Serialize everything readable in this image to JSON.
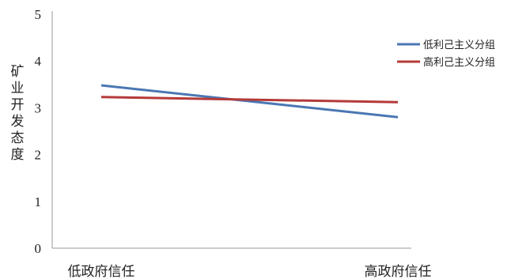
{
  "chart_data": {
    "type": "line",
    "categories": [
      "低政府信任",
      "高政府信任"
    ],
    "ylabel": "矿业开发态度",
    "xlabel": "",
    "ylim": [
      0,
      5
    ],
    "yticks": [
      0,
      1,
      2,
      3,
      4,
      5
    ],
    "grid": false,
    "legend_position": "right",
    "series": [
      {
        "name": "低利己主义分组",
        "values": [
          3.48,
          2.8
        ],
        "color": "#4a77b4"
      },
      {
        "name": "高利己主义分组",
        "values": [
          3.23,
          3.12
        ],
        "color": "#b53a3a"
      }
    ]
  }
}
